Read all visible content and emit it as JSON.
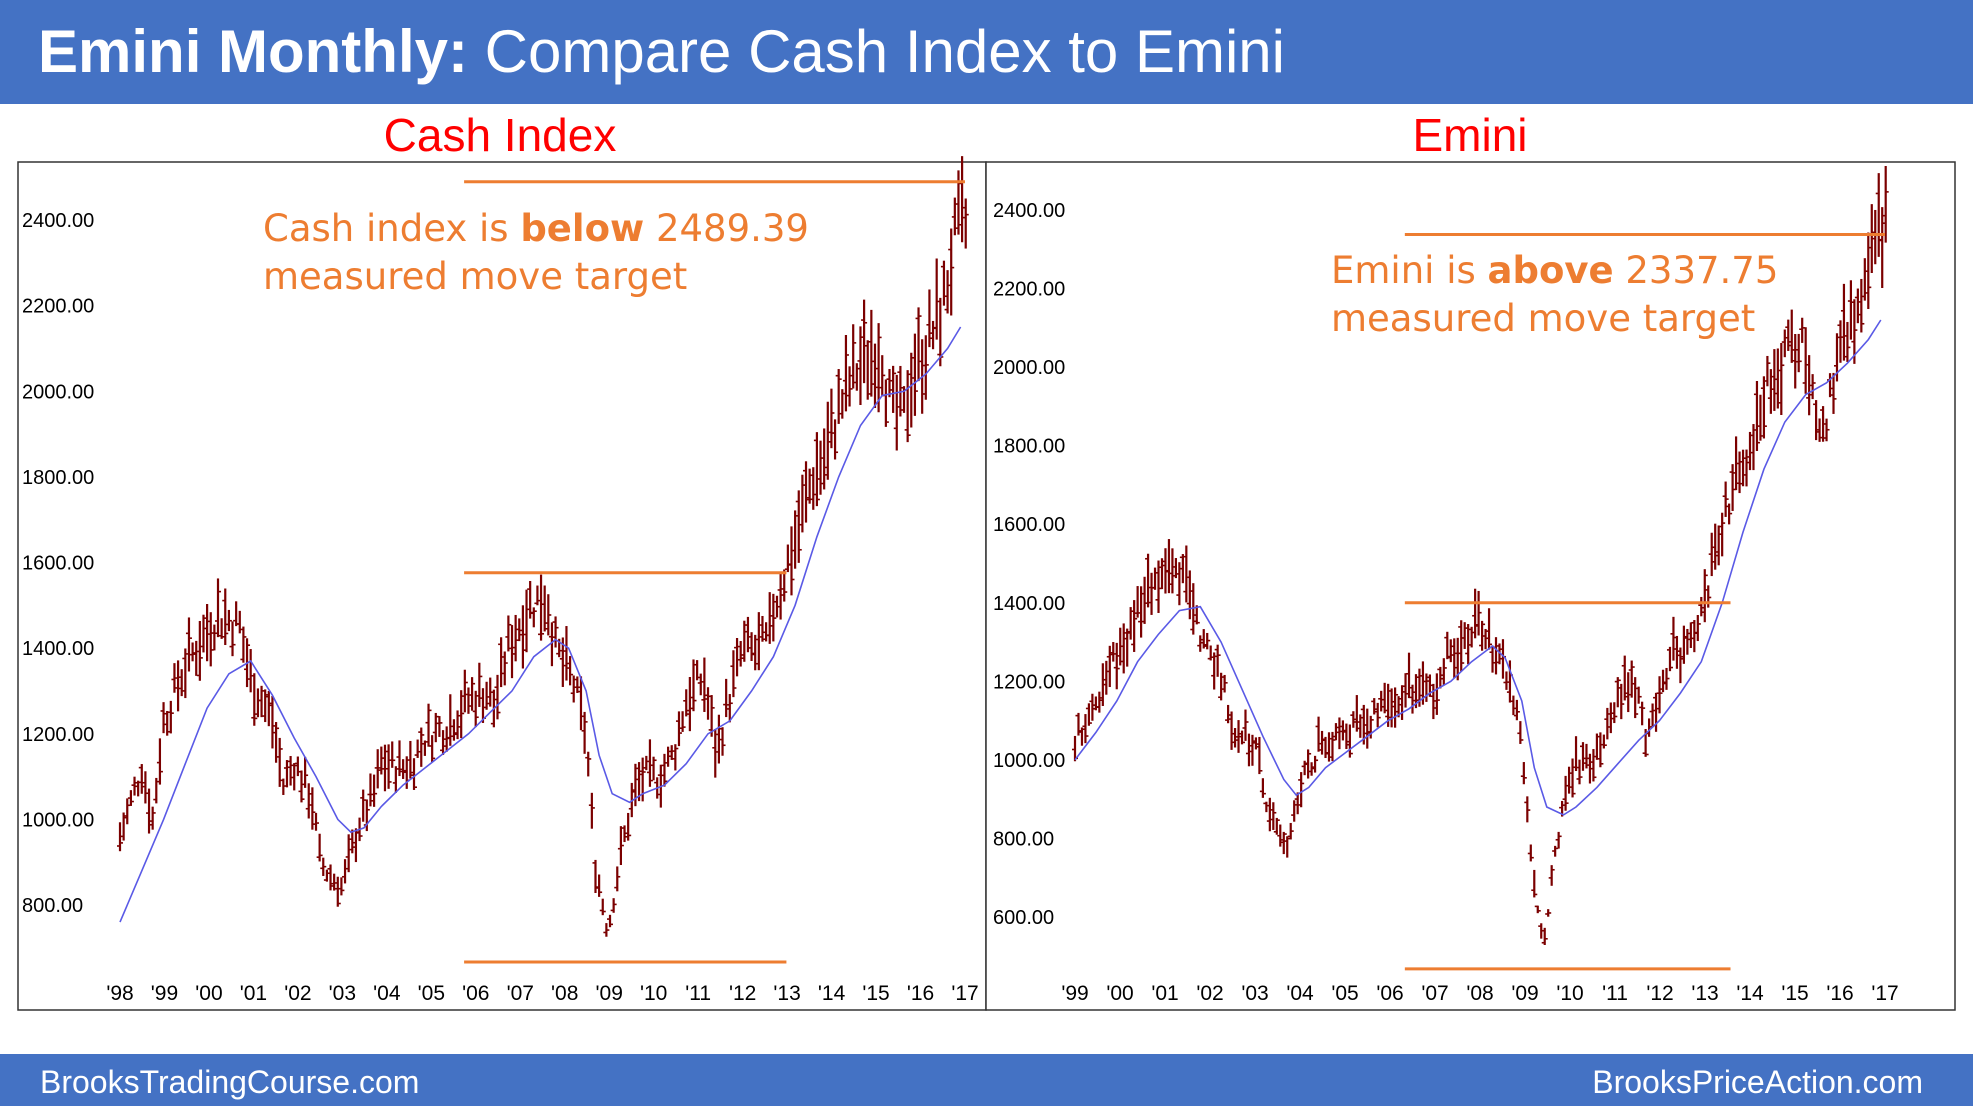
{
  "banner": {
    "title_bold": "Emini Monthly:",
    "title_rest": " Compare Cash Index to Emini"
  },
  "footer": {
    "left": "BrooksTradingCourse.com",
    "right": "BrooksPriceAction.com"
  },
  "colors": {
    "banner": "#4472c4",
    "title": "#ff0000",
    "bars": "#7b0000",
    "moving_average": "#5a5ae6",
    "target_lines": "#ed7d31"
  },
  "chart_data": [
    {
      "type": "ohlc-bar",
      "title": "Cash Index",
      "ylim": [
        680,
        2580
      ],
      "yticks": [
        "800.00",
        "1000.00",
        "1200.00",
        "1400.00",
        "1600.00",
        "1800.00",
        "2000.00",
        "2200.00",
        "2400.00"
      ],
      "xticks": [
        "'98",
        "'99",
        "'00",
        "'01",
        "'02",
        "'03",
        "'04",
        "'05",
        "'06",
        "'07",
        "'08",
        "'09",
        "'10",
        "'11",
        "'12",
        "'13",
        "'14",
        "'15",
        "'16",
        "'17"
      ],
      "x_start": 1998.0,
      "x_end": 2017.4,
      "series": [
        {
          "name": "Monthly",
          "values": [
            [
              1998.0,
              960
            ],
            [
              1998.5,
              1120
            ],
            [
              1998.75,
              1000
            ],
            [
              1999.0,
              1230
            ],
            [
              1999.5,
              1360
            ],
            [
              2000.0,
              1440
            ],
            [
              2000.25,
              1480
            ],
            [
              2000.75,
              1450
            ],
            [
              2001.0,
              1330
            ],
            [
              2001.5,
              1230
            ],
            [
              2001.75,
              1080
            ],
            [
              2002.0,
              1130
            ],
            [
              2002.4,
              1050
            ],
            [
              2002.6,
              900
            ],
            [
              2002.8,
              870
            ],
            [
              2003.1,
              840
            ],
            [
              2003.3,
              920
            ],
            [
              2003.5,
              990
            ],
            [
              2003.8,
              1050
            ],
            [
              2004.0,
              1130
            ],
            [
              2004.5,
              1120
            ],
            [
              2004.75,
              1140
            ],
            [
              2005.0,
              1190
            ],
            [
              2005.5,
              1220
            ],
            [
              2006.0,
              1280
            ],
            [
              2006.4,
              1300
            ],
            [
              2006.6,
              1260
            ],
            [
              2006.9,
              1400
            ],
            [
              2007.4,
              1500
            ],
            [
              2007.8,
              1520
            ],
            [
              2008.0,
              1400
            ],
            [
              2008.4,
              1320
            ],
            [
              2008.7,
              1200
            ],
            [
              2008.9,
              900
            ],
            [
              2009.2,
              740
            ],
            [
              2009.5,
              920
            ],
            [
              2009.8,
              1060
            ],
            [
              2010.0,
              1100
            ],
            [
              2010.4,
              1100
            ],
            [
              2010.7,
              1150
            ],
            [
              2011.0,
              1280
            ],
            [
              2011.4,
              1330
            ],
            [
              2011.7,
              1150
            ],
            [
              2011.9,
              1250
            ],
            [
              2012.3,
              1400
            ],
            [
              2012.6,
              1390
            ],
            [
              2012.9,
              1420
            ],
            [
              2013.0,
              1490
            ],
            [
              2013.4,
              1620
            ],
            [
              2013.9,
              1800
            ],
            [
              2014.2,
              1850
            ],
            [
              2014.5,
              1960
            ],
            [
              2014.9,
              2050
            ],
            [
              2015.3,
              2100
            ],
            [
              2015.5,
              2090
            ],
            [
              2015.7,
              1950
            ],
            [
              2016.0,
              1940
            ],
            [
              2016.15,
              2040
            ],
            [
              2016.5,
              2100
            ],
            [
              2016.9,
              2200
            ],
            [
              2017.1,
              2320
            ],
            [
              2017.3,
              2390
            ]
          ]
        },
        {
          "name": "Moving average",
          "values": [
            [
              1998.0,
              760
            ],
            [
              1998.5,
              880
            ],
            [
              1999.0,
              1000
            ],
            [
              1999.5,
              1130
            ],
            [
              2000.0,
              1260
            ],
            [
              2000.5,
              1340
            ],
            [
              2001.0,
              1370
            ],
            [
              2001.5,
              1290
            ],
            [
              2002.0,
              1190
            ],
            [
              2002.5,
              1100
            ],
            [
              2003.0,
              1000
            ],
            [
              2003.3,
              970
            ],
            [
              2003.6,
              980
            ],
            [
              2004.0,
              1030
            ],
            [
              2004.5,
              1080
            ],
            [
              2005.0,
              1120
            ],
            [
              2005.5,
              1160
            ],
            [
              2006.0,
              1200
            ],
            [
              2006.5,
              1250
            ],
            [
              2007.0,
              1300
            ],
            [
              2007.5,
              1380
            ],
            [
              2008.0,
              1420
            ],
            [
              2008.3,
              1400
            ],
            [
              2008.7,
              1300
            ],
            [
              2009.0,
              1150
            ],
            [
              2009.3,
              1060
            ],
            [
              2009.7,
              1040
            ],
            [
              2010.0,
              1060
            ],
            [
              2010.5,
              1080
            ],
            [
              2011.0,
              1130
            ],
            [
              2011.5,
              1200
            ],
            [
              2012.0,
              1230
            ],
            [
              2012.5,
              1300
            ],
            [
              2013.0,
              1380
            ],
            [
              2013.5,
              1500
            ],
            [
              2014.0,
              1660
            ],
            [
              2014.5,
              1800
            ],
            [
              2015.0,
              1920
            ],
            [
              2015.5,
              1990
            ],
            [
              2016.0,
              2000
            ],
            [
              2016.5,
              2040
            ],
            [
              2017.0,
              2100
            ],
            [
              2017.3,
              2150
            ]
          ]
        }
      ],
      "target_lines": [
        {
          "from": 2005.9,
          "to": 2017.4,
          "value": 2489.39
        },
        {
          "from": 2005.9,
          "to": 2013.3,
          "value": 1576
        },
        {
          "from": 2005.9,
          "to": 2013.3,
          "value": 667
        }
      ],
      "annotation": {
        "line1_pre": "Cash index is ",
        "line1_bold": "below",
        "line1_post": " 2489.39",
        "line2": "measured move target"
      }
    },
    {
      "type": "ohlc-bar",
      "title": "Emini",
      "ylim": [
        450,
        2500
      ],
      "yticks": [
        "600.00",
        "800.00",
        "1000.00",
        "1200.00",
        "1400.00",
        "1600.00",
        "1800.00",
        "2000.00",
        "2200.00",
        "2400.00"
      ],
      "xticks": [
        "'99",
        "'00",
        "'01",
        "'02",
        "'03",
        "'04",
        "'05",
        "'06",
        "'07",
        "'08",
        "'09",
        "'10",
        "'11",
        "'12",
        "'13",
        "'14",
        "'15",
        "'16",
        "'17"
      ],
      "x_start": 1998.0,
      "x_end": 2017.4,
      "series": [
        {
          "name": "Monthly",
          "values": [
            [
              1998.0,
              1060
            ],
            [
              1998.5,
              1150
            ],
            [
              1999.0,
              1260
            ],
            [
              1999.5,
              1380
            ],
            [
              2000.0,
              1450
            ],
            [
              2000.25,
              1480
            ],
            [
              2000.75,
              1430
            ],
            [
              2001.0,
              1320
            ],
            [
              2001.5,
              1220
            ],
            [
              2001.75,
              1080
            ],
            [
              2002.0,
              1070
            ],
            [
              2002.4,
              1010
            ],
            [
              2002.6,
              870
            ],
            [
              2002.9,
              820
            ],
            [
              2003.1,
              770
            ],
            [
              2003.3,
              880
            ],
            [
              2003.5,
              960
            ],
            [
              2003.8,
              1030
            ],
            [
              2004.0,
              1060
            ],
            [
              2004.5,
              1070
            ],
            [
              2005.0,
              1110
            ],
            [
              2005.5,
              1140
            ],
            [
              2006.0,
              1180
            ],
            [
              2006.5,
              1160
            ],
            [
              2006.9,
              1260
            ],
            [
              2007.4,
              1320
            ],
            [
              2007.8,
              1350
            ],
            [
              2008.0,
              1260
            ],
            [
              2008.4,
              1200
            ],
            [
              2008.7,
              1050
            ],
            [
              2008.9,
              780
            ],
            [
              2009.2,
              520
            ],
            [
              2009.5,
              760
            ],
            [
              2009.8,
              960
            ],
            [
              2010.0,
              1000
            ],
            [
              2010.4,
              990
            ],
            [
              2010.7,
              1040
            ],
            [
              2011.0,
              1170
            ],
            [
              2011.4,
              1200
            ],
            [
              2011.7,
              1020
            ],
            [
              2011.9,
              1150
            ],
            [
              2012.3,
              1280
            ],
            [
              2012.6,
              1270
            ],
            [
              2012.9,
              1300
            ],
            [
              2013.0,
              1380
            ],
            [
              2013.4,
              1560
            ],
            [
              2013.9,
              1750
            ],
            [
              2014.2,
              1800
            ],
            [
              2014.5,
              1950
            ],
            [
              2014.9,
              2000
            ],
            [
              2015.3,
              2050
            ],
            [
              2015.5,
              2060
            ],
            [
              2015.7,
              1900
            ],
            [
              2016.0,
              1880
            ],
            [
              2016.15,
              1980
            ],
            [
              2016.5,
              2100
            ],
            [
              2016.9,
              2150
            ],
            [
              2017.1,
              2290
            ],
            [
              2017.3,
              2350
            ]
          ]
        },
        {
          "name": "Moving average",
          "values": [
            [
              1998.0,
              1000
            ],
            [
              1998.5,
              1070
            ],
            [
              1999.0,
              1150
            ],
            [
              1999.5,
              1250
            ],
            [
              2000.0,
              1320
            ],
            [
              2000.5,
              1380
            ],
            [
              2001.0,
              1390
            ],
            [
              2001.5,
              1300
            ],
            [
              2002.0,
              1180
            ],
            [
              2002.5,
              1060
            ],
            [
              2003.0,
              950
            ],
            [
              2003.3,
              910
            ],
            [
              2003.6,
              930
            ],
            [
              2004.0,
              980
            ],
            [
              2004.5,
              1020
            ],
            [
              2005.0,
              1060
            ],
            [
              2005.5,
              1100
            ],
            [
              2006.0,
              1130
            ],
            [
              2006.5,
              1170
            ],
            [
              2007.0,
              1200
            ],
            [
              2007.5,
              1250
            ],
            [
              2008.0,
              1290
            ],
            [
              2008.3,
              1260
            ],
            [
              2008.7,
              1150
            ],
            [
              2009.0,
              980
            ],
            [
              2009.3,
              880
            ],
            [
              2009.7,
              860
            ],
            [
              2010.0,
              880
            ],
            [
              2010.5,
              930
            ],
            [
              2011.0,
              990
            ],
            [
              2011.5,
              1050
            ],
            [
              2012.0,
              1100
            ],
            [
              2012.5,
              1170
            ],
            [
              2013.0,
              1250
            ],
            [
              2013.5,
              1400
            ],
            [
              2014.0,
              1580
            ],
            [
              2014.5,
              1740
            ],
            [
              2015.0,
              1860
            ],
            [
              2015.5,
              1930
            ],
            [
              2016.0,
              1960
            ],
            [
              2016.5,
              2010
            ],
            [
              2017.0,
              2070
            ],
            [
              2017.3,
              2120
            ]
          ]
        }
      ],
      "target_lines": [
        {
          "from": 2005.9,
          "to": 2017.4,
          "value": 2337.75
        },
        {
          "from": 2005.9,
          "to": 2013.7,
          "value": 1400
        },
        {
          "from": 2005.9,
          "to": 2013.7,
          "value": 468
        }
      ],
      "annotation": {
        "line1_pre": "Emini is ",
        "line1_bold": "above",
        "line1_post": " 2337.75",
        "line2": "measured move target"
      }
    }
  ]
}
